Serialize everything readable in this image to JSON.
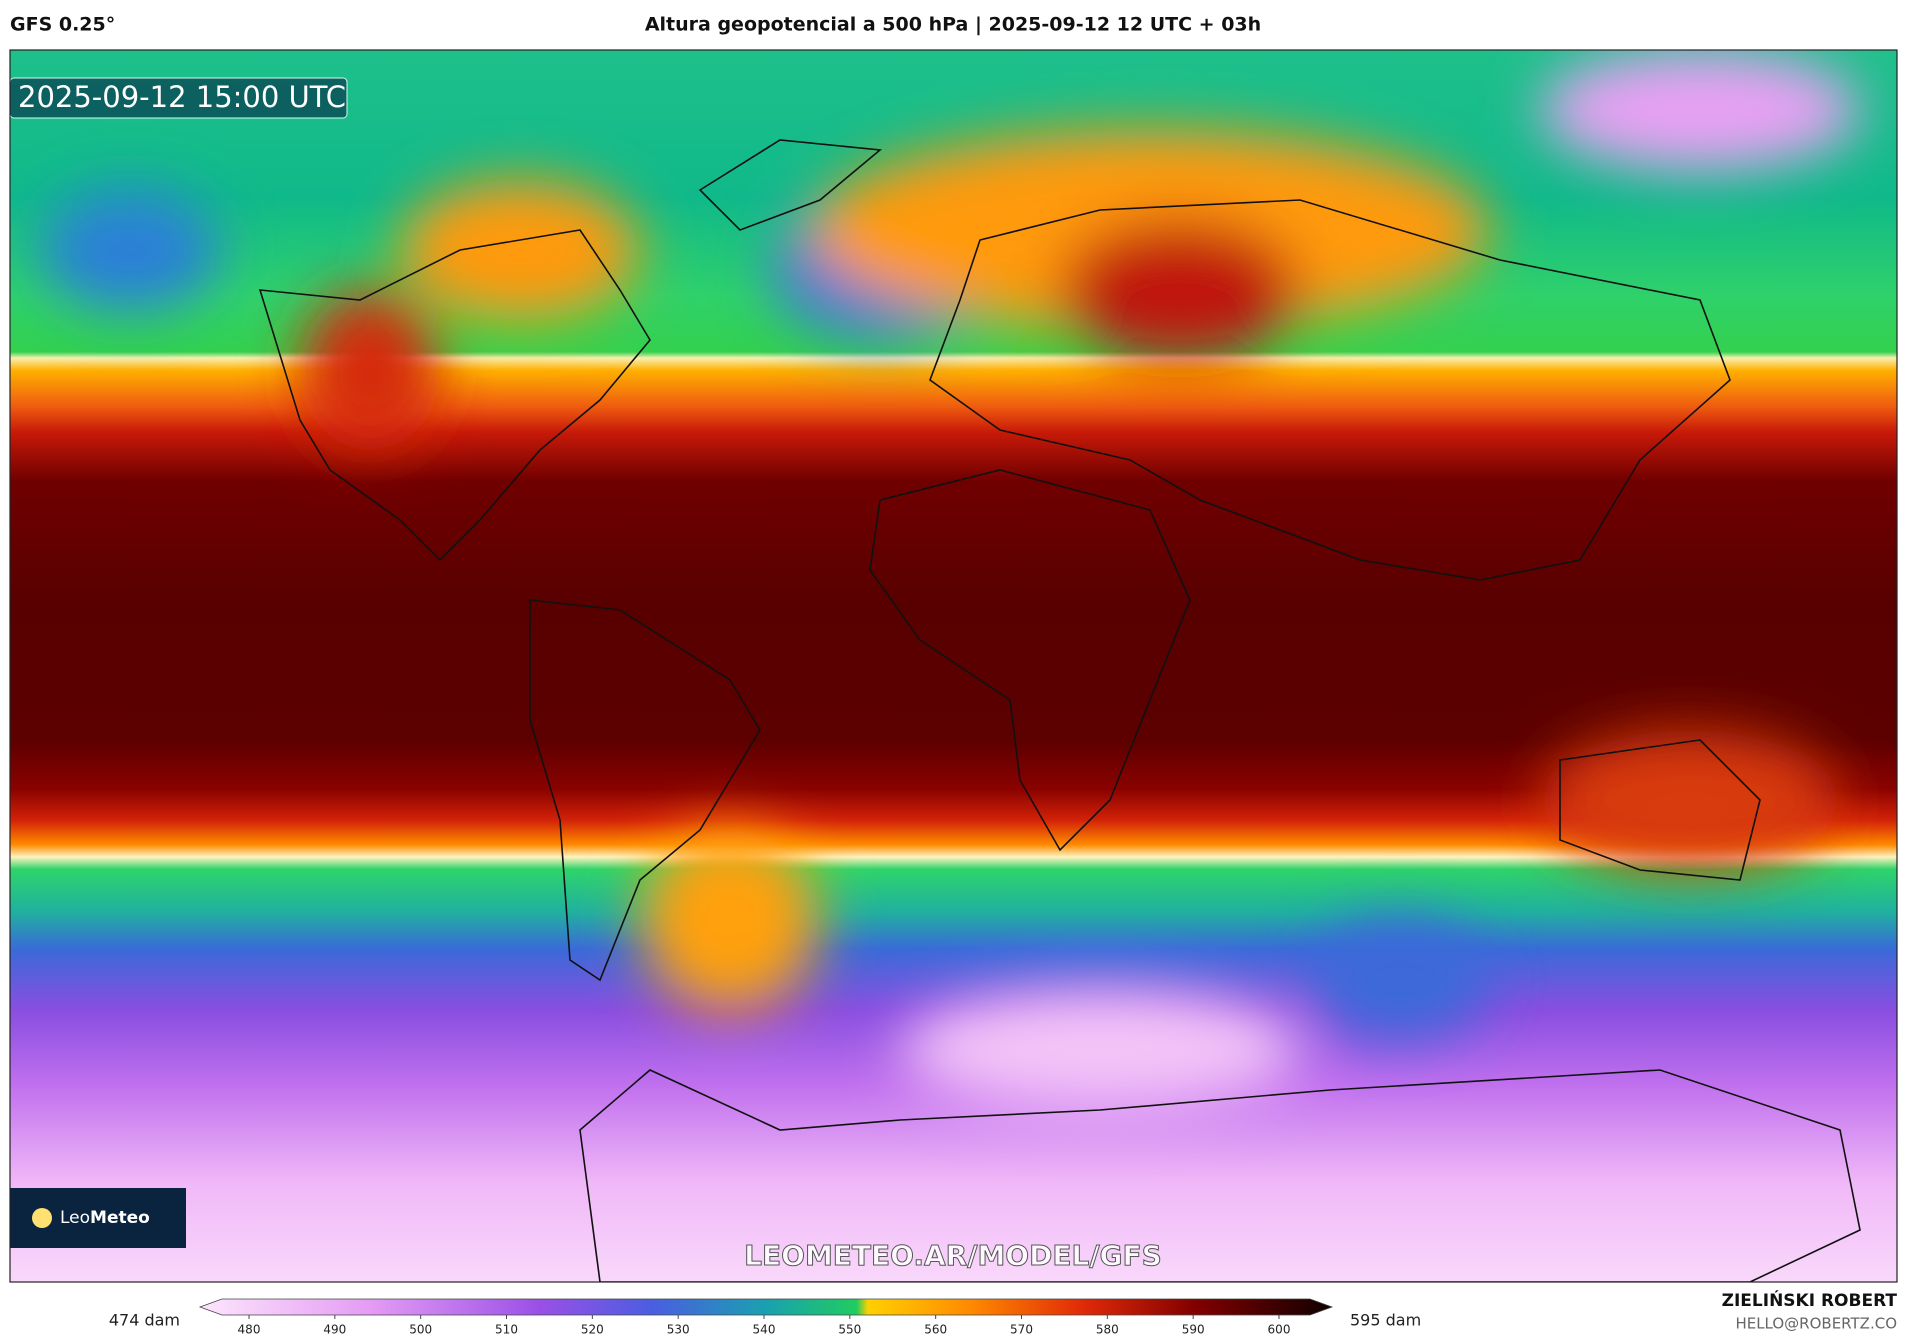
{
  "header": {
    "model": "GFS 0.25°",
    "title": "Altura geopotencial a 500 hPa | 2025-09-12 12 UTC + 03h"
  },
  "map": {
    "timestamp": "2025-09-12 15:00 UTC",
    "watermark": "LEOMETEO.AR/MODEL/GFS",
    "logo_light": "Leo",
    "logo_bold": "Meteo"
  },
  "colorbar": {
    "min_label": "474 dam",
    "max_label": "595 dam",
    "ticks": [
      480,
      490,
      500,
      510,
      520,
      530,
      540,
      550,
      560,
      570,
      580,
      590,
      600
    ]
  },
  "footer": {
    "author": "ZIELIŃSKI ROBERT",
    "email": "HELLO@ROBERTZ.CO"
  }
}
